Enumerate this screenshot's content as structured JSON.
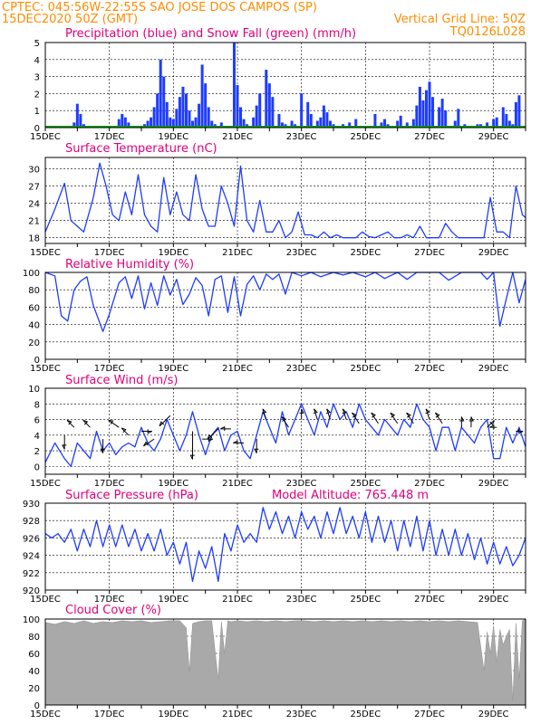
{
  "header": {
    "line1": "CPTEC:  045:56W-22:55S  SAO JOSE DOS CAMPOS (SP)",
    "line2_left": "15DEC2020 50Z (GMT)",
    "line2_right": "Vertical Grid Line: 50Z",
    "line3_right": "TQ0126L028",
    "model_altitude": "Model Altitude: 765.448 m"
  },
  "colors": {
    "header": "#ff8c00",
    "panel_title": "#e0007a",
    "precip": "#1e3cff",
    "snow": "#00a000",
    "line": "#1e3cff",
    "cloud": "#a9a9a9",
    "wind_arrow": "#000000"
  },
  "x_axis": {
    "start_day": 15,
    "end_day": 30,
    "tick_labels": [
      "15DEC",
      "17DEC",
      "19DEC",
      "21DEC",
      "23DEC",
      "25DEC",
      "27DEC",
      "29DEC"
    ],
    "tick_days": [
      15,
      17,
      19,
      21,
      23,
      25,
      27,
      29
    ]
  },
  "chart_data": [
    {
      "id": "precip",
      "type": "bar",
      "title": "Precipitation (blue) and Snow Fall (green) (mm/h)",
      "ylim": [
        0,
        5
      ],
      "yticks": [
        0,
        1,
        2,
        3,
        4,
        5
      ],
      "grid": true,
      "series": [
        {
          "name": "blue",
          "x": [
            15.9,
            16.0,
            16.1,
            16.2,
            17.2,
            17.3,
            17.4,
            17.5,
            17.6,
            17.7,
            18.1,
            18.2,
            18.3,
            18.4,
            18.5,
            18.6,
            18.7,
            18.8,
            18.9,
            19.0,
            19.1,
            19.2,
            19.3,
            19.4,
            19.5,
            19.6,
            19.7,
            19.8,
            19.9,
            20.0,
            20.1,
            20.2,
            20.3,
            20.4,
            20.5,
            20.9,
            21.0,
            21.1,
            21.2,
            21.3,
            21.5,
            21.6,
            21.7,
            21.9,
            22.0,
            22.1,
            22.3,
            22.4,
            22.5,
            22.6,
            22.7,
            22.8,
            23.0,
            23.2,
            23.3,
            23.5,
            23.6,
            23.7,
            23.8,
            23.9,
            24.0,
            24.3,
            24.5,
            24.7,
            25.3,
            25.5,
            25.6,
            25.7,
            26.0,
            26.1,
            26.3,
            26.5,
            26.6,
            26.7,
            26.8,
            26.9,
            27.0,
            27.1,
            27.3,
            27.4,
            27.5,
            27.8,
            27.9,
            28.1,
            28.5,
            28.6,
            28.7,
            28.8,
            29.0,
            29.1,
            29.3,
            29.4,
            29.5,
            29.6,
            29.7,
            29.8
          ],
          "values": [
            0.3,
            1.4,
            0.8,
            0.2,
            0.1,
            0.5,
            0.8,
            0.6,
            0.3,
            0.1,
            0.2,
            0.4,
            0.6,
            1.2,
            2.0,
            4.0,
            3.0,
            1.5,
            0.6,
            0.5,
            1.1,
            1.8,
            2.4,
            2.0,
            1.0,
            0.4,
            0.6,
            1.4,
            3.7,
            2.6,
            1.2,
            0.4,
            0.2,
            0.1,
            0.3,
            5.0,
            2.5,
            1.2,
            0.5,
            0.2,
            0.6,
            1.3,
            2.0,
            3.4,
            2.6,
            1.8,
            0.8,
            0.3,
            0.2,
            0.1,
            0.4,
            0.2,
            2.0,
            1.5,
            0.8,
            0.4,
            0.6,
            1.3,
            0.9,
            0.4,
            0.2,
            0.2,
            0.3,
            0.5,
            0.8,
            0.3,
            0.5,
            0.2,
            0.4,
            0.7,
            0.3,
            0.5,
            1.3,
            2.4,
            1.6,
            2.2,
            2.7,
            1.8,
            1.2,
            1.7,
            1.0,
            0.4,
            1.1,
            0.2,
            0.2,
            0.2,
            0.1,
            0.3,
            0.5,
            0.6,
            1.2,
            0.8,
            0.4,
            0.2,
            1.5,
            1.9
          ]
        },
        {
          "name": "green",
          "x": [
            15,
            30
          ],
          "values": [
            0.05,
            0.05
          ]
        }
      ]
    },
    {
      "id": "temp",
      "type": "line",
      "title": "Surface Temperature (nC)",
      "ylim": [
        17,
        32
      ],
      "yticks": [
        18,
        21,
        24,
        27,
        30
      ],
      "grid": true,
      "x": [
        15.0,
        15.3,
        15.6,
        15.8,
        16.0,
        16.2,
        16.5,
        16.7,
        16.9,
        17.1,
        17.3,
        17.5,
        17.7,
        17.9,
        18.1,
        18.3,
        18.5,
        18.7,
        18.9,
        19.1,
        19.3,
        19.5,
        19.7,
        19.9,
        20.1,
        20.3,
        20.5,
        20.7,
        20.9,
        21.1,
        21.3,
        21.5,
        21.7,
        21.9,
        22.1,
        22.3,
        22.5,
        22.7,
        22.9,
        23.1,
        23.3,
        23.5,
        23.7,
        23.9,
        24.1,
        24.3,
        24.5,
        24.7,
        24.9,
        25.1,
        25.3,
        25.5,
        25.7,
        25.9,
        26.1,
        26.3,
        26.5,
        26.7,
        26.9,
        27.1,
        27.3,
        27.5,
        27.7,
        27.9,
        28.1,
        28.3,
        28.5,
        28.7,
        28.9,
        29.1,
        29.3,
        29.5,
        29.7,
        29.9,
        30.0
      ],
      "values": [
        19,
        23,
        27.5,
        21,
        20,
        19,
        25,
        31,
        27,
        22,
        21,
        26,
        22,
        29,
        22,
        20,
        19,
        28.5,
        22,
        26,
        22,
        21,
        29,
        23,
        20,
        20,
        27,
        24,
        20,
        30.5,
        21,
        19,
        24.5,
        19,
        19,
        21,
        18,
        19,
        22.5,
        18.5,
        18.5,
        18,
        19,
        18,
        18.5,
        18,
        18,
        18,
        19,
        18.2,
        18,
        18.5,
        19,
        18,
        18,
        18.5,
        18,
        20,
        18,
        18,
        18,
        20.5,
        19,
        18,
        18,
        18,
        18,
        18,
        25,
        19,
        19,
        18,
        27,
        22,
        21.5
      ]
    },
    {
      "id": "rh",
      "type": "line",
      "title": "Relative Humidity (%)",
      "ylim": [
        0,
        100
      ],
      "yticks": [
        0,
        20,
        40,
        60,
        80,
        100
      ],
      "grid": true,
      "x": [
        15.0,
        15.3,
        15.5,
        15.7,
        15.9,
        16.1,
        16.3,
        16.5,
        16.8,
        17.0,
        17.3,
        17.5,
        17.7,
        17.9,
        18.1,
        18.3,
        18.5,
        18.7,
        18.9,
        19.1,
        19.3,
        19.5,
        19.7,
        19.9,
        20.1,
        20.3,
        20.5,
        20.7,
        20.9,
        21.1,
        21.3,
        21.5,
        21.7,
        21.9,
        22.1,
        22.3,
        22.5,
        22.7,
        23.0,
        23.3,
        23.6,
        24.0,
        24.3,
        24.6,
        25.0,
        25.3,
        25.6,
        26.0,
        26.3,
        26.6,
        27.0,
        27.3,
        27.6,
        28.0,
        28.3,
        28.6,
        28.8,
        29.0,
        29.2,
        29.4,
        29.6,
        29.8,
        30.0
      ],
      "values": [
        100,
        96,
        50,
        44,
        80,
        90,
        95,
        62,
        32,
        52,
        88,
        95,
        70,
        96,
        58,
        88,
        62,
        96,
        74,
        92,
        63,
        75,
        94,
        85,
        50,
        92,
        96,
        54,
        95,
        50,
        86,
        96,
        80,
        98,
        92,
        98,
        75,
        100,
        96,
        100,
        95,
        100,
        97,
        100,
        95,
        100,
        93,
        100,
        92,
        100,
        100,
        100,
        91,
        100,
        100,
        100,
        92,
        100,
        38,
        70,
        100,
        65,
        92
      ]
    },
    {
      "id": "wind",
      "type": "line",
      "title": "Surface Wind (m/s)",
      "ylim": [
        -1,
        10
      ],
      "yticks": [
        0,
        2,
        4,
        6,
        8,
        10
      ],
      "grid": true,
      "x": [
        15.0,
        15.3,
        15.6,
        15.8,
        16.0,
        16.2,
        16.4,
        16.6,
        16.8,
        17.0,
        17.2,
        17.4,
        17.6,
        17.8,
        18.0,
        18.2,
        18.4,
        18.6,
        18.8,
        19.0,
        19.2,
        19.4,
        19.6,
        19.8,
        20.0,
        20.2,
        20.4,
        20.6,
        20.8,
        21.0,
        21.2,
        21.4,
        21.6,
        21.8,
        22.0,
        22.2,
        22.4,
        22.6,
        22.8,
        23.0,
        23.2,
        23.4,
        23.6,
        23.8,
        24.0,
        24.2,
        24.4,
        24.6,
        24.8,
        25.0,
        25.2,
        25.4,
        25.6,
        25.8,
        26.0,
        26.2,
        26.4,
        26.6,
        26.8,
        27.0,
        27.2,
        27.4,
        27.6,
        27.8,
        28.0,
        28.2,
        28.4,
        28.6,
        28.8,
        29.0,
        29.2,
        29.4,
        29.6,
        29.8,
        30.0
      ],
      "values": [
        0.5,
        3,
        1,
        0,
        3,
        2,
        1,
        4.5,
        2,
        3,
        1.5,
        2.5,
        3,
        2.5,
        5,
        3,
        2,
        3.5,
        6,
        4,
        2,
        4,
        7,
        4,
        1.5,
        4,
        5,
        2,
        4,
        4.5,
        2,
        1,
        4,
        7,
        5,
        3,
        7,
        4,
        6,
        8,
        6,
        4,
        7,
        5,
        8,
        6,
        7,
        5,
        8,
        6,
        5,
        4,
        6,
        5,
        4,
        6,
        5,
        8,
        6,
        5,
        2,
        5,
        5,
        2,
        5,
        4,
        3,
        5,
        6,
        1,
        1,
        5,
        3,
        5,
        2.5
      ],
      "arrows": [
        {
          "x": 15.6,
          "y": 4,
          "dx": 0,
          "dy": -2
        },
        {
          "x": 15.9,
          "y": 5,
          "dx": -1,
          "dy": 1
        },
        {
          "x": 16.4,
          "y": 5,
          "dx": -1,
          "dy": 1
        },
        {
          "x": 16.8,
          "y": 3.5,
          "dx": 0,
          "dy": -2
        },
        {
          "x": 17.3,
          "y": 5,
          "dx": -1.5,
          "dy": 1
        },
        {
          "x": 17.6,
          "y": 4,
          "dx": -1,
          "dy": 1
        },
        {
          "x": 18.0,
          "y": 4.5,
          "dx": 1.5,
          "dy": 0
        },
        {
          "x": 18.4,
          "y": 3.5,
          "dx": -1.5,
          "dy": -1
        },
        {
          "x": 18.9,
          "y": 6.5,
          "dx": -1.5,
          "dy": -1.5
        },
        {
          "x": 19.6,
          "y": 4.5,
          "dx": 0,
          "dy": -4
        },
        {
          "x": 19.9,
          "y": 3.5,
          "dx": 1.5,
          "dy": 0
        },
        {
          "x": 20.4,
          "y": 4.8,
          "dx": -1.5,
          "dy": -1.5
        },
        {
          "x": 20.8,
          "y": 4.8,
          "dx": -1.5,
          "dy": 0
        },
        {
          "x": 21.2,
          "y": 3,
          "dx": -1.5,
          "dy": 0
        },
        {
          "x": 21.6,
          "y": 3.5,
          "dx": 0,
          "dy": -2
        },
        {
          "x": 21.9,
          "y": 6,
          "dx": -0.5,
          "dy": 1.5
        },
        {
          "x": 22.6,
          "y": 5,
          "dx": -1,
          "dy": 1.5
        },
        {
          "x": 23.0,
          "y": 6,
          "dx": 0,
          "dy": 1.5
        },
        {
          "x": 23.5,
          "y": 6,
          "dx": -0.5,
          "dy": 1.5
        },
        {
          "x": 23.9,
          "y": 6,
          "dx": -0.5,
          "dy": 1.5
        },
        {
          "x": 24.4,
          "y": 6,
          "dx": -0.5,
          "dy": 1.5
        },
        {
          "x": 24.8,
          "y": 5.5,
          "dx": -1,
          "dy": 1.5
        },
        {
          "x": 25.4,
          "y": 5.5,
          "dx": -1,
          "dy": 1.5
        },
        {
          "x": 26.0,
          "y": 5.5,
          "dx": -1,
          "dy": 1.5
        },
        {
          "x": 26.5,
          "y": 5.5,
          "dx": -1,
          "dy": 1.5
        },
        {
          "x": 27.0,
          "y": 6,
          "dx": -0.5,
          "dy": 1.5
        },
        {
          "x": 27.4,
          "y": 5.5,
          "dx": -1,
          "dy": 1.5
        },
        {
          "x": 28.0,
          "y": 5,
          "dx": 0,
          "dy": 1.5
        },
        {
          "x": 28.3,
          "y": 5,
          "dx": 0,
          "dy": 1.5
        },
        {
          "x": 28.8,
          "y": 5,
          "dx": 1,
          "dy": 1
        },
        {
          "x": 29.1,
          "y": 5,
          "dx": -1,
          "dy": 0
        },
        {
          "x": 29.7,
          "y": 4.5,
          "dx": 1,
          "dy": 0
        }
      ]
    },
    {
      "id": "pressure",
      "type": "line",
      "title": "Surface Pressure (hPa)",
      "ylim": [
        920,
        930
      ],
      "yticks": [
        920,
        922,
        924,
        926,
        928,
        930
      ],
      "grid": true,
      "x": [
        15.0,
        15.2,
        15.4,
        15.6,
        15.8,
        16.0,
        16.2,
        16.4,
        16.6,
        16.8,
        17.0,
        17.2,
        17.4,
        17.6,
        17.8,
        18.0,
        18.2,
        18.4,
        18.6,
        18.8,
        19.0,
        19.2,
        19.4,
        19.6,
        19.8,
        20.0,
        20.2,
        20.4,
        20.6,
        20.8,
        21.0,
        21.2,
        21.4,
        21.6,
        21.8,
        22.0,
        22.2,
        22.4,
        22.6,
        22.8,
        23.0,
        23.2,
        23.4,
        23.6,
        23.8,
        24.0,
        24.2,
        24.4,
        24.6,
        24.8,
        25.0,
        25.2,
        25.4,
        25.6,
        25.8,
        26.0,
        26.2,
        26.4,
        26.6,
        26.8,
        27.0,
        27.2,
        27.4,
        27.6,
        27.8,
        28.0,
        28.2,
        28.4,
        28.6,
        28.8,
        29.0,
        29.2,
        29.4,
        29.6,
        29.8,
        30.0
      ],
      "values": [
        926.5,
        926,
        926.5,
        925.5,
        927,
        924.5,
        927,
        925,
        928,
        925,
        927.5,
        925,
        927.5,
        925,
        927,
        924.5,
        926.5,
        924.5,
        927,
        924,
        925.5,
        923,
        925.5,
        921,
        924.5,
        922.5,
        925,
        921,
        926.5,
        924.5,
        927.5,
        925.5,
        926.5,
        925.5,
        929.5,
        927,
        929,
        926.5,
        928.5,
        926,
        929,
        927,
        928.5,
        926,
        929,
        926.5,
        929.5,
        926.5,
        928.5,
        926,
        929,
        925.5,
        928.5,
        925.5,
        928,
        924.5,
        928,
        925,
        928.5,
        924.5,
        928,
        924,
        927,
        924,
        927,
        924,
        926.5,
        923.5,
        926,
        923,
        925.5,
        923,
        925,
        922.8,
        924,
        926
      ]
    },
    {
      "id": "cloud",
      "type": "area",
      "title": "Cloud Cover (%)",
      "ylim": [
        0,
        100
      ],
      "yticks": [
        0,
        20,
        40,
        60,
        80,
        100
      ],
      "grid": true,
      "x": [
        15.0,
        15.3,
        15.6,
        15.9,
        16.2,
        16.5,
        16.8,
        17.1,
        17.4,
        17.7,
        18.0,
        18.3,
        18.6,
        18.9,
        19.2,
        19.4,
        19.5,
        19.6,
        19.8,
        20.0,
        20.2,
        20.4,
        20.5,
        20.6,
        20.7,
        20.8,
        21.0,
        21.3,
        21.6,
        21.9,
        22.2,
        22.5,
        22.8,
        23.1,
        23.4,
        23.7,
        24.0,
        24.3,
        24.6,
        24.9,
        25.2,
        25.5,
        25.8,
        26.1,
        26.4,
        26.7,
        27.0,
        27.3,
        27.6,
        27.9,
        28.2,
        28.5,
        28.7,
        28.8,
        28.9,
        29.0,
        29.1,
        29.2,
        29.3,
        29.4,
        29.5,
        29.6,
        29.7,
        29.8,
        29.9,
        30.0
      ],
      "values": [
        96,
        94,
        97,
        95,
        98,
        95,
        97,
        96,
        98,
        97,
        98,
        96,
        97,
        98,
        98,
        90,
        38,
        95,
        97,
        98,
        98,
        30,
        97,
        60,
        98,
        97,
        98,
        97,
        98,
        97,
        98,
        97,
        98,
        98,
        97,
        98,
        97,
        98,
        97,
        98,
        97,
        98,
        97,
        98,
        97,
        98,
        97,
        98,
        97,
        98,
        97,
        96,
        40,
        85,
        60,
        92,
        50,
        88,
        70,
        80,
        88,
        5,
        95,
        30,
        98,
        100
      ]
    }
  ]
}
